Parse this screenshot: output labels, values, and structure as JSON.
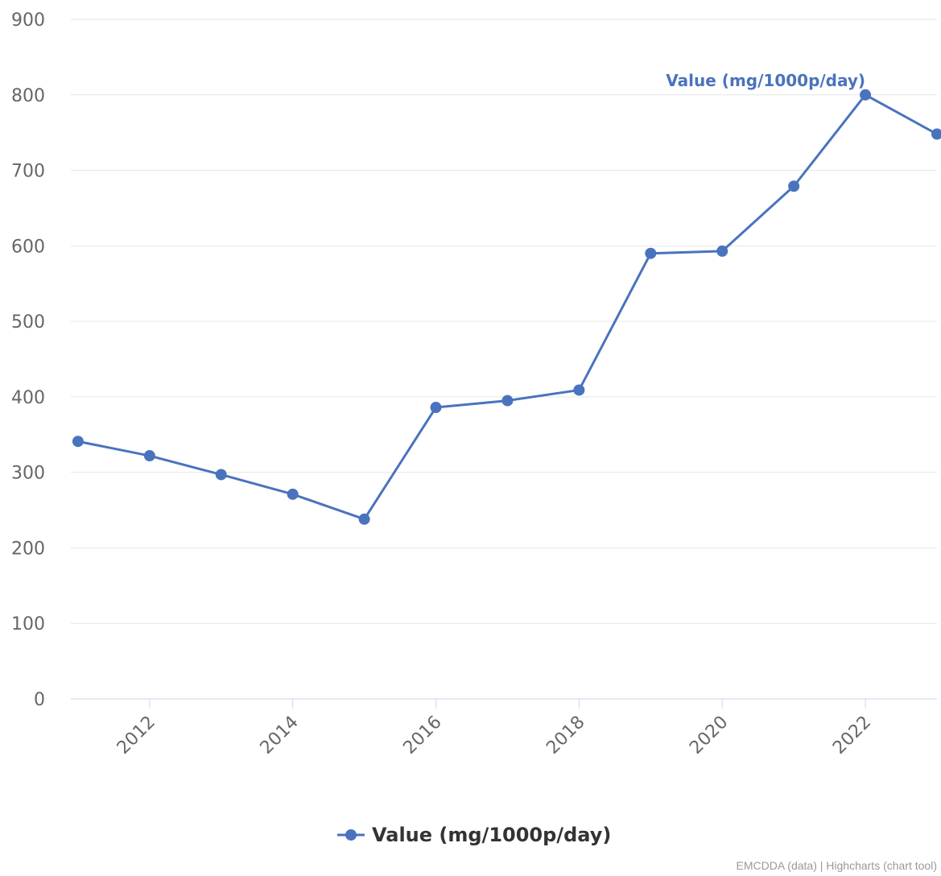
{
  "chart_data": {
    "type": "line",
    "x": [
      2011,
      2012,
      2013,
      2014,
      2015,
      2016,
      2017,
      2018,
      2019,
      2020,
      2021,
      2022,
      2023
    ],
    "series": [
      {
        "name": "Value (mg/1000p/day)",
        "color": "#4a73be",
        "values": [
          341,
          322,
          297,
          271,
          238,
          386,
          395,
          409,
          590,
          593,
          679,
          800,
          748
        ]
      }
    ],
    "x_tick_labels": [
      "2012",
      "2014",
      "2016",
      "2018",
      "2020",
      "2022"
    ],
    "y_ticks": [
      0,
      100,
      200,
      300,
      400,
      500,
      600,
      700,
      800,
      900
    ],
    "xlim": [
      2010.9,
      2023
    ],
    "ylim": [
      0,
      900
    ],
    "grid": true,
    "legend_position": "bottom-center",
    "series_label_at_peak": "Value (mg/1000p/day)"
  },
  "legend": {
    "label": "Value (mg/1000p/day)"
  },
  "credits": "EMCDDA (data) | Highcharts (chart tool)"
}
